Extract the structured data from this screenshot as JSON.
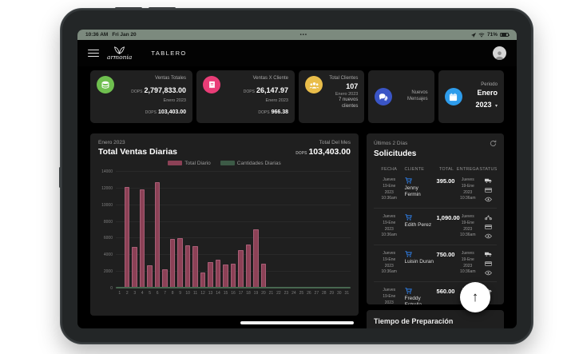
{
  "status_bar": {
    "time": "10:36 AM",
    "date": "Fri Jan 20",
    "center_dots": "•••",
    "battery_percent": "71%"
  },
  "header": {
    "logo": "armonia",
    "title": "TABLERO"
  },
  "cards": {
    "ventas_totales": {
      "title": "Ventas Totales",
      "currency": "DOPS",
      "value": "2,797,833.00",
      "period": "Enero 2023",
      "sub_currency": "DOPS",
      "sub_value": "103,403.00",
      "icon_color": "#6fbf4f"
    },
    "ventas_x_cliente": {
      "title": "Ventas X Cliente",
      "currency": "DOPS",
      "value": "26,147.97",
      "period": "Enero 2023",
      "sub_currency": "DOPS",
      "sub_value": "966.38",
      "icon_color": "#e93d77"
    },
    "total_clientes": {
      "title": "Total Clientes",
      "value": "107",
      "period": "Enero 2023",
      "sub_note": "7 nuevos clientes",
      "icon_color": "#e9bd4a"
    },
    "nuevos_mensajes": {
      "title": "Nuevos Mensajes",
      "icon_color": "#3a55c6"
    },
    "periodo": {
      "title": "Periodo",
      "value": "Enero",
      "year": "2023",
      "caret": "▾",
      "icon_color": "#2e9ceb"
    }
  },
  "chart_panel": {
    "period": "Enero 2023",
    "title": "Total Ventas Diarias",
    "total_label": "Total Del Mes",
    "total_currency": "DOPS",
    "total_value": "103,403.00"
  },
  "chart_data": {
    "type": "bar",
    "title": "Total Ventas Diarias",
    "categories": [
      "1",
      "2",
      "3",
      "4",
      "5",
      "6",
      "7",
      "8",
      "9",
      "10",
      "11",
      "12",
      "13",
      "14",
      "15",
      "16",
      "17",
      "18",
      "19",
      "20",
      "21",
      "22",
      "23",
      "24",
      "25",
      "26",
      "27",
      "28",
      "29",
      "30",
      "31"
    ],
    "series": [
      {
        "name": "Total Diario",
        "color": "#8c4156",
        "values": [
          100,
          12200,
          5000,
          11900,
          2800,
          12800,
          2300,
          5900,
          6000,
          5200,
          5100,
          1900,
          3200,
          3500,
          2900,
          3000,
          4600,
          5300,
          7100,
          3000,
          0,
          0,
          0,
          0,
          0,
          0,
          0,
          0,
          0,
          0,
          0
        ]
      },
      {
        "name": "Cantidades Diarias",
        "color": "#3c5a46",
        "values": [
          0,
          0,
          0,
          0,
          0,
          0,
          0,
          0,
          0,
          0,
          0,
          0,
          0,
          0,
          0,
          0,
          0,
          0,
          0,
          0,
          0,
          0,
          0,
          0,
          0,
          0,
          0,
          0,
          0,
          0,
          0
        ]
      }
    ],
    "ylim": [
      0,
      14000
    ],
    "yticks": [
      0,
      2000,
      4000,
      6000,
      8000,
      10000,
      12000,
      14000
    ],
    "xlabel": "",
    "ylabel": "",
    "grid": true,
    "legend_position": "top-center"
  },
  "solicitudes": {
    "subtitle": "Últimos 2 Días",
    "title": "Solicitudes",
    "columns": [
      "FECHA",
      "CLIENTE",
      "TOTAL",
      "ENTREGA",
      "STATUS"
    ],
    "rows": [
      {
        "fecha": "Jueves 19-Ene 2023 10:36am",
        "cliente": "Jenny Fermin",
        "total": "395.00",
        "entrega": "Jueves 19-Ene 2023 10:36am",
        "status": [
          "truck-icon",
          "payment-icon",
          "eye-icon"
        ]
      },
      {
        "fecha": "Jueves 19-Ene 2023 10:36am",
        "cliente": "Edith Perez",
        "total": "1,090.00",
        "entrega": "Jueves 19-Ene 2023 10:36am",
        "status": [
          "motorcycle-icon",
          "payment-icon",
          "eye-icon"
        ]
      },
      {
        "fecha": "Jueves 19-Ene 2023 10:36am",
        "cliente": "Luisin Duran",
        "total": "750.00",
        "entrega": "Jueves 19-Ene 2023 10:36am",
        "status": [
          "truck-icon",
          "payment-icon",
          "eye-icon"
        ]
      },
      {
        "fecha": "Jueves 19-Ene 2023",
        "cliente": "Freddy Estrella",
        "total": "560.00",
        "entrega": "Jueves 19-Ene 2023",
        "status": [
          "truck-icon"
        ]
      }
    ]
  },
  "tiempo_panel": {
    "title": "Tiempo de Preparación"
  },
  "fab": {
    "glyph": "↑"
  }
}
